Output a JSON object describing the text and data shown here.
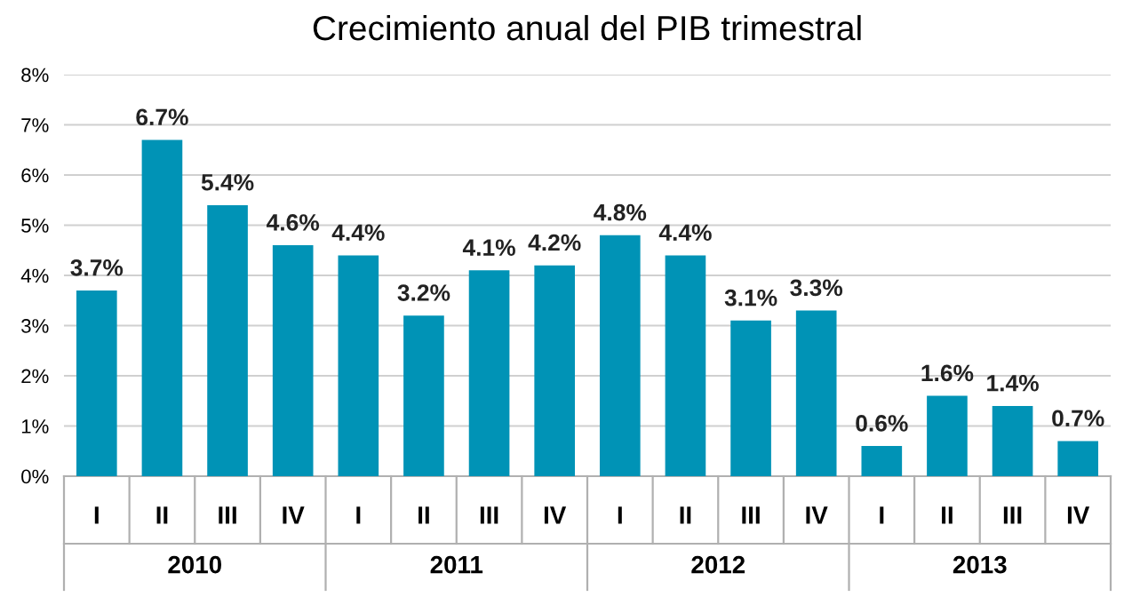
{
  "chart_data": {
    "type": "bar",
    "title": "Crecimiento anual del PIB trimestral",
    "categories": [
      "I",
      "II",
      "III",
      "IV",
      "I",
      "II",
      "III",
      "IV",
      "I",
      "II",
      "III",
      "IV",
      "I",
      "II",
      "III",
      "IV"
    ],
    "values": [
      3.7,
      6.7,
      5.4,
      4.6,
      4.4,
      3.2,
      4.1,
      4.2,
      4.8,
      4.4,
      3.1,
      3.3,
      0.6,
      1.6,
      1.4,
      0.7
    ],
    "value_labels": [
      "3.7%",
      "6.7%",
      "5.4%",
      "4.6%",
      "4.4%",
      "3.2%",
      "4.1%",
      "4.2%",
      "4.8%",
      "4.4%",
      "3.1%",
      "3.3%",
      "0.6%",
      "1.6%",
      "1.4%",
      "0.7%"
    ],
    "color": "#0093b6",
    "annotations": [
      "2010",
      "2011",
      "2012",
      "2013"
    ],
    "ylim": [
      0,
      8
    ],
    "yticks": [
      {
        "value": 0,
        "label": "0%"
      },
      {
        "value": 1,
        "label": "1%"
      },
      {
        "value": 2,
        "label": "2%"
      },
      {
        "value": 3,
        "label": "3%"
      },
      {
        "value": 4,
        "label": "4%"
      },
      {
        "value": 5,
        "label": "5%"
      },
      {
        "value": 6,
        "label": "6%"
      },
      {
        "value": 7,
        "label": "7%"
      },
      {
        "value": 8,
        "label": "8%"
      }
    ],
    "grid": "y"
  }
}
